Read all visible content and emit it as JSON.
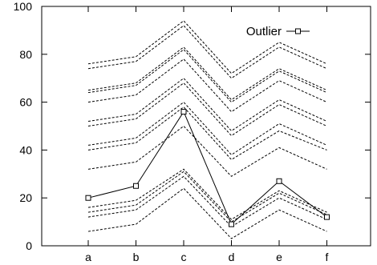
{
  "chart_data": {
    "type": "line",
    "title": "",
    "xlabel": "",
    "ylabel": "",
    "categories": [
      "a",
      "b",
      "c",
      "d",
      "e",
      "f"
    ],
    "ylim": [
      0,
      100
    ],
    "yticks": [
      0,
      20,
      40,
      60,
      80,
      100
    ],
    "grid": false,
    "legend_position": "top-right",
    "background_series": {
      "style": "dashed",
      "color": "#000000",
      "values": [
        [
          6,
          9,
          24,
          3,
          15,
          6
        ],
        [
          12,
          15,
          29,
          8,
          20,
          11
        ],
        [
          14,
          17,
          31,
          10,
          22,
          13
        ],
        [
          16,
          19,
          32,
          11,
          23,
          14
        ],
        [
          32,
          35,
          50,
          29,
          41,
          32
        ],
        [
          40,
          43,
          58,
          36,
          48,
          40
        ],
        [
          42,
          45,
          60,
          38,
          51,
          42
        ],
        [
          50,
          53,
          68,
          46,
          59,
          50
        ],
        [
          52,
          55,
          70,
          48,
          61,
          52
        ],
        [
          60,
          63,
          78,
          56,
          69,
          60
        ],
        [
          64,
          67,
          82,
          60,
          73,
          64
        ],
        [
          65,
          68,
          83,
          61,
          74,
          65
        ],
        [
          74,
          77,
          92,
          70,
          83,
          74
        ],
        [
          76,
          79,
          94,
          72,
          85,
          76
        ]
      ]
    },
    "series": [
      {
        "name": "Outlier",
        "color": "#000000",
        "marker": "square",
        "values": [
          20,
          25,
          56,
          9,
          27,
          12
        ]
      }
    ]
  }
}
